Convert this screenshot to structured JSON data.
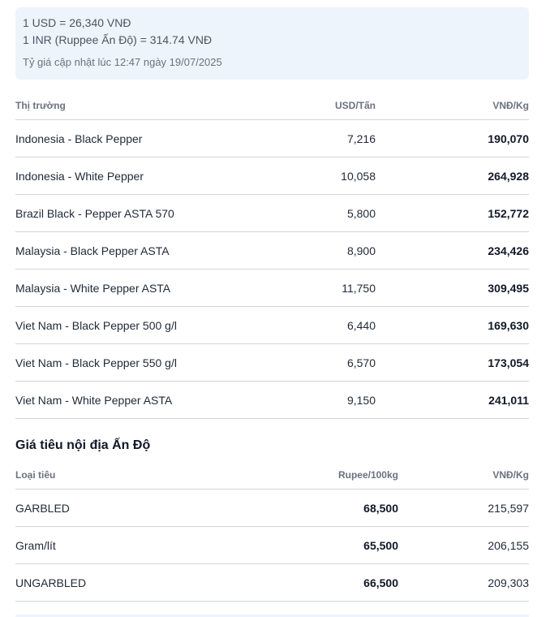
{
  "exchange": {
    "usd_rate": "1 USD = 26,340 VNĐ",
    "inr_rate": "1 INR (Ruppee Ấn Độ) = 314.74 VNĐ",
    "updated": "Tỷ giá cập nhật lúc 12:47 ngày 19/07/2025"
  },
  "market_table": {
    "headers": [
      "Thị trường",
      "USD/Tấn",
      "VNĐ/Kg"
    ],
    "rows": [
      [
        "Indonesia - Black Pepper",
        "7,216",
        "190,070"
      ],
      [
        "Indonesia - White Pepper",
        "10,058",
        "264,928"
      ],
      [
        "Brazil Black - Pepper ASTA 570",
        "5,800",
        "152,772"
      ],
      [
        "Malaysia - Black Pepper ASTA",
        "8,900",
        "234,426"
      ],
      [
        "Malaysia - White Pepper ASTA",
        "11,750",
        "309,495"
      ],
      [
        "Viet Nam - Black Pepper 500 g/l",
        "6,440",
        "169,630"
      ],
      [
        "Viet Nam - Black Pepper 550 g/l",
        "6,570",
        "173,054"
      ],
      [
        "Viet Nam - White Pepper ASTA",
        "9,150",
        "241,011"
      ]
    ]
  },
  "india_section": {
    "title": "Giá tiêu nội địa Ấn Độ",
    "headers": [
      "Loại tiêu",
      "Rupee/100kg",
      "VNĐ/Kg"
    ],
    "rows": [
      [
        "GARBLED",
        "68,500",
        "215,597"
      ],
      [
        "Gram/lít",
        "65,500",
        "206,155"
      ],
      [
        "UNGARBLED",
        "66,500",
        "209,303"
      ]
    ]
  }
}
